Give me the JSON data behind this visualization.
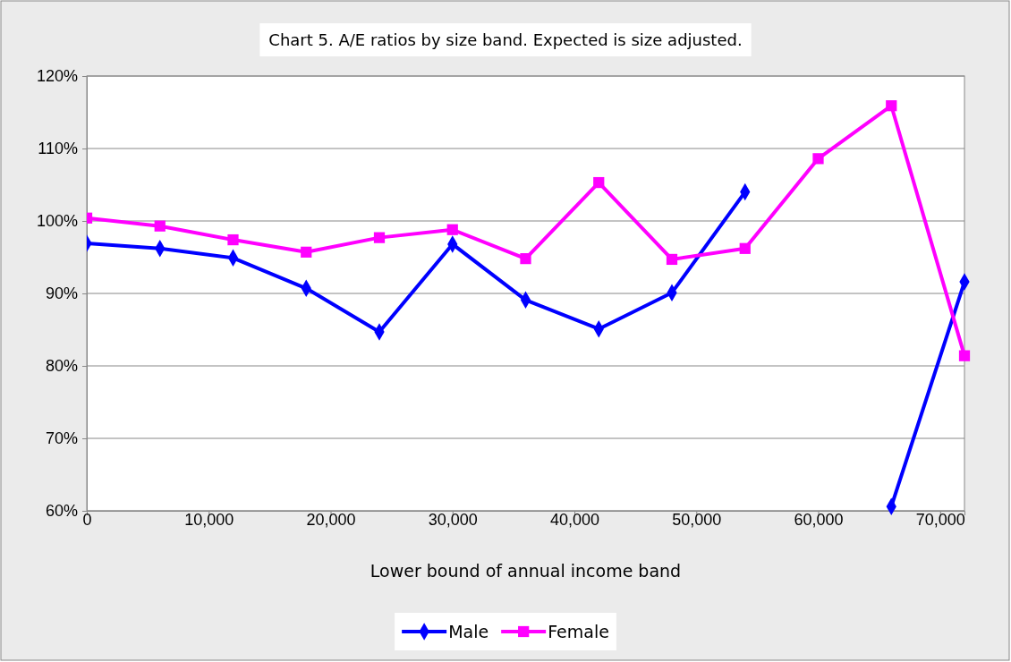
{
  "chart_data": {
    "type": "line",
    "title": "Chart 5. A/E ratios by size band. Expected is size adjusted.",
    "xlabel": "Lower bound of annual income band",
    "x": [
      0,
      6000,
      12000,
      18000,
      24000,
      30000,
      36000,
      42000,
      48000,
      54000,
      60000,
      66000,
      72000
    ],
    "series": [
      {
        "name": "Male",
        "color": "#0000ff",
        "marker": "diamond",
        "values": [
          96.9,
          96.2,
          94.9,
          90.7,
          84.7,
          96.8,
          89.1,
          85.1,
          90.1,
          104.0,
          null,
          60.6,
          91.6
        ]
      },
      {
        "name": "Female",
        "color": "#ff00ff",
        "marker": "square",
        "values": [
          100.4,
          99.3,
          97.4,
          95.7,
          97.7,
          98.8,
          94.8,
          105.3,
          94.7,
          96.2,
          108.6,
          115.9,
          81.4
        ]
      }
    ],
    "xlim": [
      0,
      72000
    ],
    "xticks": [
      {
        "value": 0,
        "label": "0"
      },
      {
        "value": 10000,
        "label": "10,000"
      },
      {
        "value": 20000,
        "label": "20,000"
      },
      {
        "value": 30000,
        "label": "30,000"
      },
      {
        "value": 40000,
        "label": "40,000"
      },
      {
        "value": 50000,
        "label": "50,000"
      },
      {
        "value": 60000,
        "label": "60,000"
      },
      {
        "value": 70000,
        "label": "70,000"
      }
    ],
    "ylim": [
      60,
      120
    ],
    "yticks": [
      {
        "value": 60,
        "label": "60%"
      },
      {
        "value": 70,
        "label": "70%"
      },
      {
        "value": 80,
        "label": "80%"
      },
      {
        "value": 90,
        "label": "90%"
      },
      {
        "value": 100,
        "label": "100%"
      },
      {
        "value": 110,
        "label": "110%"
      },
      {
        "value": 120,
        "label": "120%"
      }
    ],
    "grid": "y",
    "legend": "bottom",
    "line_style": "solid"
  }
}
